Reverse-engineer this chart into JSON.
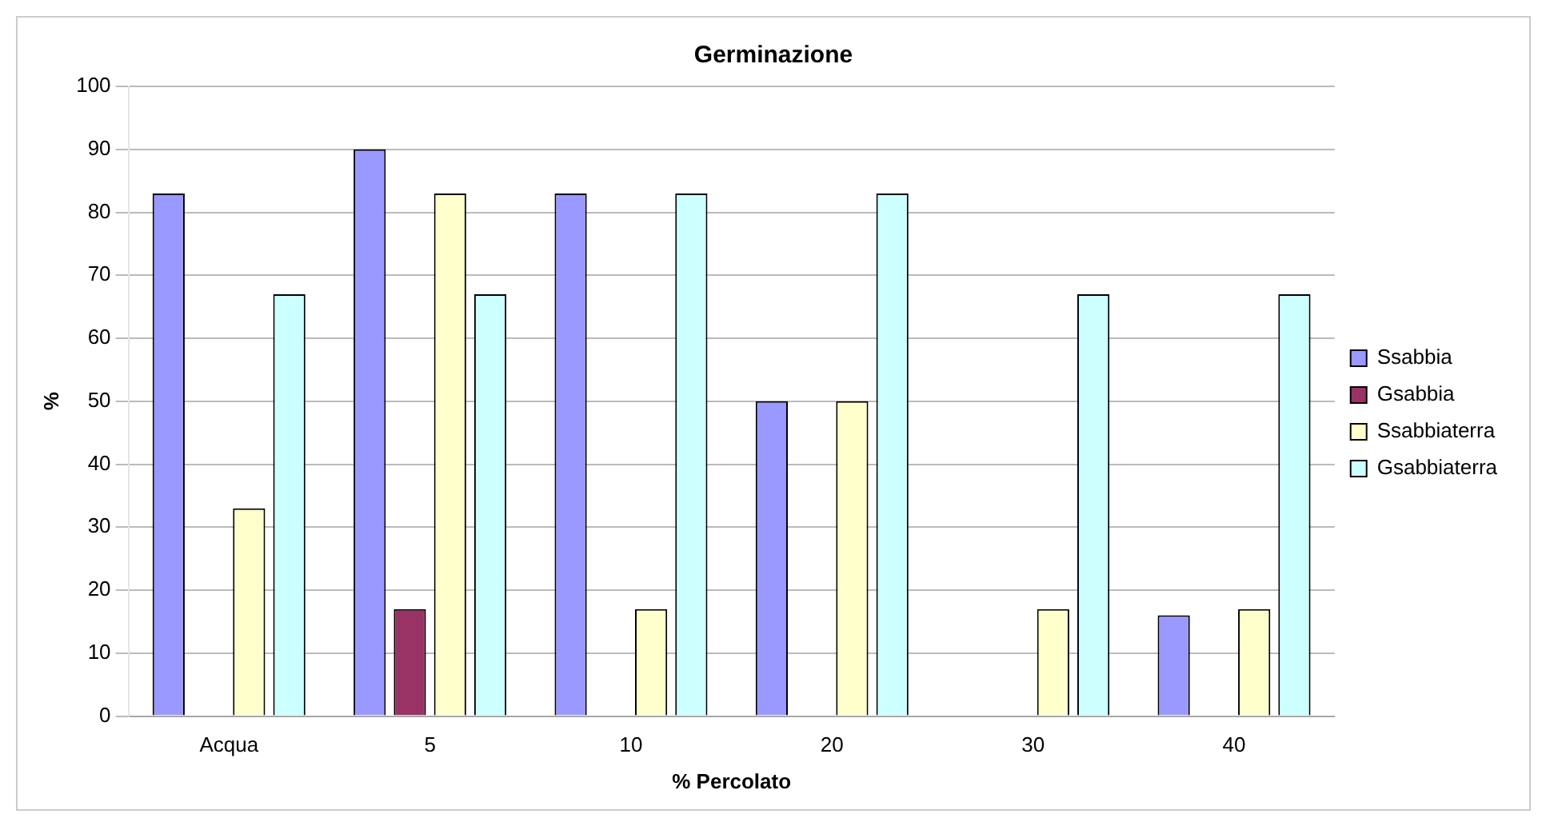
{
  "chart_data": {
    "type": "bar",
    "title": "Germinazione",
    "xlabel": "% Percolato",
    "ylabel": "%",
    "categories": [
      "Acqua",
      "5",
      "10",
      "20",
      "30",
      "40"
    ],
    "series": [
      {
        "name": "Ssabbia",
        "color": "#9999ff",
        "values": [
          83,
          90,
          83,
          50,
          0,
          16
        ]
      },
      {
        "name": "Gsabbia",
        "color": "#993366",
        "values": [
          0,
          17,
          0,
          0,
          0,
          0
        ]
      },
      {
        "name": "Ssabbiaterra",
        "color": "#ffffcc",
        "values": [
          33,
          83,
          17,
          50,
          17,
          17
        ]
      },
      {
        "name": "Gsabbiaterra",
        "color": "#ccffff",
        "values": [
          67,
          67,
          83,
          83,
          67,
          67
        ]
      }
    ],
    "ylim": [
      0,
      100
    ],
    "yticks": [
      0,
      10,
      20,
      30,
      40,
      50,
      60,
      70,
      80,
      90,
      100
    ],
    "grid": "y",
    "legend": "right"
  }
}
